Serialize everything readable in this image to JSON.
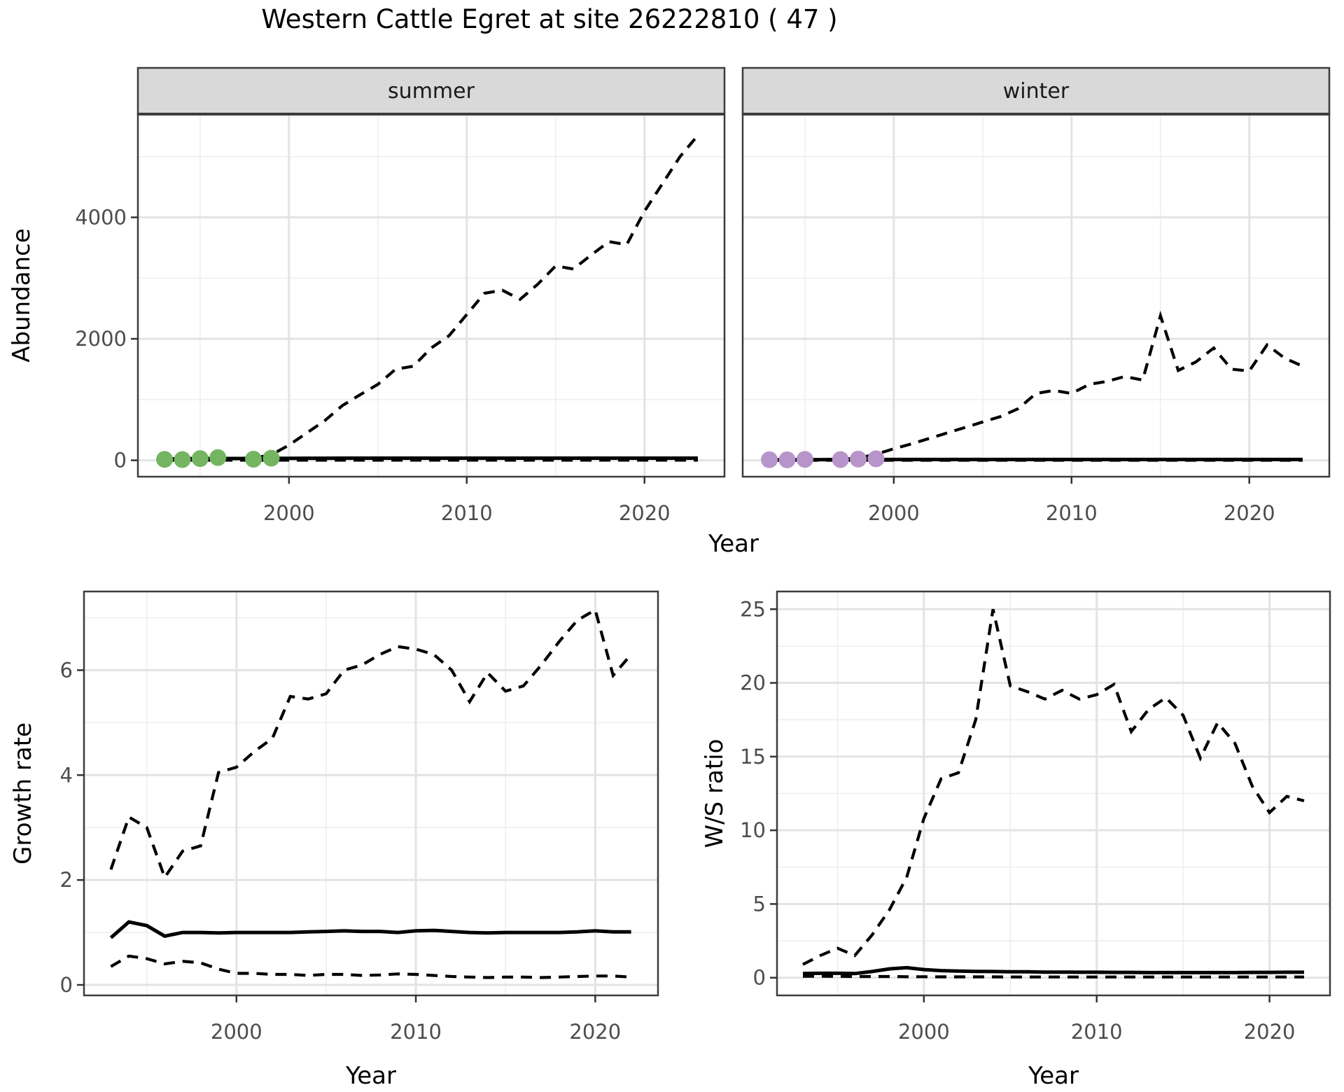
{
  "title": "Western Cattle Egret at site 26222810 ( 47 )",
  "colors": {
    "background": "#ffffff",
    "line": "#000000",
    "grid_major": "#e3e3e3",
    "grid_minor": "#f0f0f0",
    "panel_border": "#3c3c3c",
    "tick_mark": "#333333",
    "axis_text": "#4d4d4d",
    "axis_title": "#000000",
    "strip_bg": "#d9d9d9",
    "strip_text": "#1a1a1a",
    "summer_point": "#74b562",
    "winter_point": "#b794c9"
  },
  "chart_data": {
    "type": "line",
    "title": "Western Cattle Egret at site 26222810 ( 47 )",
    "legend_position": "none",
    "grid": "on",
    "panels": [
      {
        "id": "abundance-summer",
        "facet_label": "summer",
        "xlabel": "Year",
        "ylabel": "Abundance",
        "xlim": [
          1991.5,
          2024.5
        ],
        "ylim": [
          -270,
          5700
        ],
        "xticks": [
          2000,
          2010,
          2020
        ],
        "yticks": [
          0,
          2000,
          4000
        ],
        "x_minor": [
          1995,
          2005,
          2015
        ],
        "y_minor": [
          1000,
          3000,
          5000
        ],
        "x_data_start": 1993,
        "series": [
          {
            "name": "upper-ci",
            "style": "dashed",
            "values": [
              15,
              15,
              20,
              25,
              30,
              40,
              90,
              250,
              450,
              650,
              900,
              1080,
              1250,
              1500,
              1550,
              1850,
              2050,
              2400,
              2750,
              2800,
              2650,
              2900,
              3200,
              3150,
              3380,
              3600,
              3550,
              4100,
              4550,
              5000,
              5350
            ]
          },
          {
            "name": "lower-ci",
            "style": "dashed",
            "values": [
              2,
              2,
              2,
              2,
              2,
              2,
              2,
              2,
              2,
              2,
              2,
              2,
              2,
              2,
              2,
              2,
              2,
              2,
              2,
              2,
              2,
              2,
              2,
              2,
              2,
              2,
              2,
              2,
              2,
              2,
              2
            ]
          },
          {
            "name": "median",
            "style": "solid",
            "values": [
              20,
              26,
              30,
              30,
              30,
              30,
              32,
              33,
              34,
              34,
              35,
              35,
              35,
              35,
              35,
              35,
              35,
              35,
              35,
              35,
              35,
              35,
              35,
              35,
              35,
              35,
              35,
              35,
              35,
              35,
              35
            ]
          },
          {
            "name": "observed",
            "style": "points",
            "color_key": "summer_point",
            "x": [
              1993,
              1994,
              1995,
              1996,
              1998,
              1999
            ],
            "values": [
              15,
              12,
              28,
              45,
              18,
              35
            ]
          }
        ]
      },
      {
        "id": "abundance-winter",
        "facet_label": "winter",
        "xlabel": "Year",
        "ylabel": "Abundance",
        "xlim": [
          1991.5,
          2024.5
        ],
        "ylim": [
          -270,
          5700
        ],
        "xticks": [
          2000,
          2010,
          2020
        ],
        "yticks": [
          0,
          2000,
          4000
        ],
        "x_minor": [
          1995,
          2005,
          2015
        ],
        "y_minor": [
          1000,
          3000,
          5000
        ],
        "x_data_start": 1993,
        "series": [
          {
            "name": "upper-ci",
            "style": "dashed",
            "values": [
              8,
              8,
              10,
              12,
              18,
              35,
              100,
              190,
              270,
              360,
              450,
              540,
              630,
              720,
              850,
              1100,
              1150,
              1100,
              1250,
              1300,
              1380,
              1320,
              2380,
              1480,
              1620,
              1850,
              1500,
              1470,
              1900,
              1680,
              1550
            ]
          },
          {
            "name": "lower-ci",
            "style": "dashed",
            "values": [
              1,
              1,
              1,
              1,
              1,
              1,
              1,
              1,
              1,
              1,
              1,
              1,
              1,
              1,
              1,
              1,
              1,
              1,
              1,
              1,
              1,
              1,
              1,
              1,
              1,
              1,
              1,
              1,
              1,
              1,
              1
            ]
          },
          {
            "name": "median",
            "style": "solid",
            "values": [
              10,
              10,
              11,
              11,
              12,
              12,
              12,
              13,
              13,
              13,
              14,
              14,
              14,
              14,
              14,
              14,
              14,
              14,
              14,
              14,
              14,
              14,
              14,
              14,
              14,
              14,
              14,
              14,
              14,
              14,
              14
            ]
          },
          {
            "name": "observed",
            "style": "points",
            "color_key": "winter_point",
            "x": [
              1993,
              1994,
              1995,
              1997,
              1998,
              1999
            ],
            "values": [
              10,
              8,
              15,
              12,
              20,
              25
            ]
          }
        ]
      },
      {
        "id": "growth-rate",
        "facet_label": null,
        "xlabel": "Year",
        "ylabel": "Growth rate",
        "xlim": [
          1991.5,
          2023.5
        ],
        "ylim": [
          -0.2,
          7.5
        ],
        "xticks": [
          2000,
          2010,
          2020
        ],
        "yticks": [
          0,
          2,
          4,
          6
        ],
        "x_minor": [
          1995,
          2005,
          2015
        ],
        "y_minor": [
          1,
          3,
          5,
          7
        ],
        "x_data_start": 1993,
        "series": [
          {
            "name": "upper-ci",
            "style": "dashed",
            "values": [
              2.2,
              3.2,
              3.0,
              2.05,
              2.55,
              2.65,
              4.05,
              4.15,
              4.45,
              4.7,
              5.5,
              5.45,
              5.55,
              6.0,
              6.1,
              6.3,
              6.45,
              6.4,
              6.3,
              6.0,
              5.4,
              5.95,
              5.6,
              5.7,
              6.1,
              6.55,
              6.95,
              7.15,
              5.9,
              6.3
            ]
          },
          {
            "name": "lower-ci",
            "style": "dashed",
            "values": [
              0.35,
              0.55,
              0.5,
              0.4,
              0.45,
              0.42,
              0.3,
              0.22,
              0.22,
              0.2,
              0.2,
              0.18,
              0.2,
              0.2,
              0.18,
              0.19,
              0.21,
              0.2,
              0.18,
              0.16,
              0.15,
              0.14,
              0.15,
              0.15,
              0.14,
              0.15,
              0.16,
              0.17,
              0.17,
              0.15
            ]
          },
          {
            "name": "median",
            "style": "solid",
            "values": [
              0.9,
              1.2,
              1.13,
              0.93,
              1.0,
              1.0,
              0.99,
              1.0,
              1.0,
              1.0,
              1.0,
              1.01,
              1.02,
              1.03,
              1.02,
              1.02,
              1.0,
              1.03,
              1.04,
              1.02,
              1.0,
              0.99,
              1.0,
              1.0,
              1.0,
              1.0,
              1.01,
              1.03,
              1.01,
              1.01
            ]
          }
        ]
      },
      {
        "id": "ws-ratio",
        "facet_label": null,
        "xlabel": "Year",
        "ylabel": "W/S ratio",
        "xlim": [
          1991.5,
          2023.5
        ],
        "ylim": [
          -1.2,
          26.2
        ],
        "xticks": [
          2000,
          2010,
          2020
        ],
        "yticks": [
          0,
          5,
          10,
          15,
          20,
          25
        ],
        "x_minor": [
          1995,
          2005,
          2015
        ],
        "y_minor": [
          2.5,
          7.5,
          12.5,
          17.5,
          22.5
        ],
        "x_data_start": 1993,
        "series": [
          {
            "name": "upper-ci",
            "style": "dashed",
            "values": [
              0.9,
              1.5,
              2.0,
              1.5,
              2.9,
              4.6,
              6.8,
              10.8,
              13.5,
              13.9,
              17.5,
              25.0,
              19.8,
              19.4,
              18.9,
              19.5,
              18.9,
              19.2,
              19.9,
              16.7,
              18.2,
              19.0,
              17.8,
              14.9,
              17.3,
              15.9,
              13.0,
              11.2,
              12.3,
              12.0
            ]
          },
          {
            "name": "lower-ci",
            "style": "dashed",
            "values": [
              0.1,
              0.1,
              0.09,
              0.08,
              0.08,
              0.08,
              0.07,
              0.07,
              0.06,
              0.06,
              0.06,
              0.06,
              0.05,
              0.05,
              0.05,
              0.05,
              0.05,
              0.05,
              0.05,
              0.05,
              0.05,
              0.05,
              0.05,
              0.05,
              0.05,
              0.05,
              0.05,
              0.05,
              0.05,
              0.05
            ]
          },
          {
            "name": "median",
            "style": "solid",
            "values": [
              0.28,
              0.3,
              0.3,
              0.28,
              0.42,
              0.6,
              0.68,
              0.55,
              0.48,
              0.45,
              0.43,
              0.42,
              0.4,
              0.4,
              0.38,
              0.38,
              0.37,
              0.37,
              0.36,
              0.36,
              0.35,
              0.35,
              0.35,
              0.35,
              0.35,
              0.35,
              0.36,
              0.36,
              0.37,
              0.37
            ]
          }
        ]
      }
    ]
  }
}
